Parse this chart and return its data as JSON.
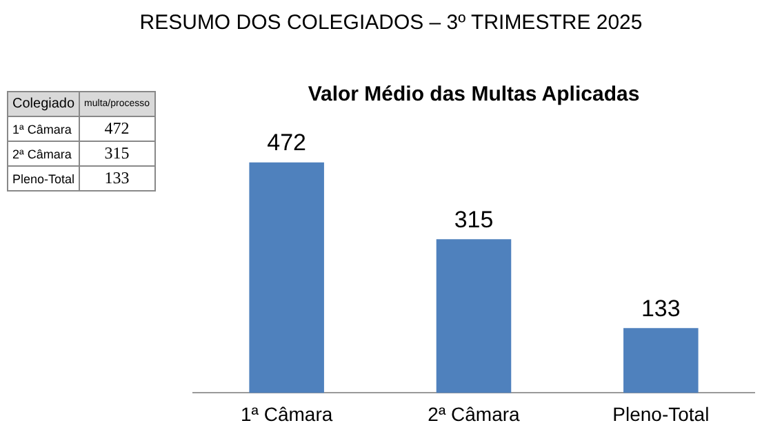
{
  "chart_data": {
    "type": "bar",
    "title": "RESUMO DOS COLEGIADOS – 3º TRIMESTRE 2025",
    "subtitle": "Valor Médio das Multas Aplicadas",
    "categories": [
      "1ª Câmara",
      "2ª Câmara",
      "Pleno-Total"
    ],
    "values": [
      472,
      315,
      133
    ],
    "color": "#4f81bd",
    "data_labels": true,
    "grid": false,
    "legend": false,
    "annotations": [
      "Colegiado",
      "multa/processo",
      "472",
      "315",
      "133"
    ]
  }
}
